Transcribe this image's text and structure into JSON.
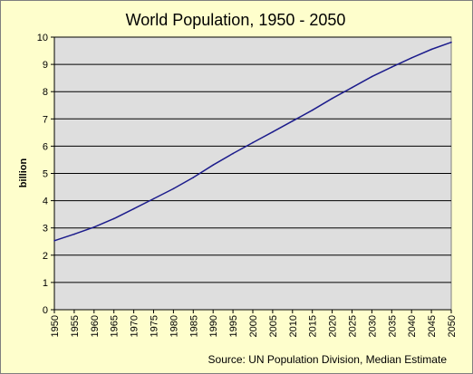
{
  "chart_data": {
    "type": "line",
    "title": "World Population, 1950 - 2050",
    "xlabel": "",
    "ylabel": "billion",
    "source": "Source: UN Population Division, Median Estimate",
    "x": [
      1950,
      1955,
      1960,
      1965,
      1970,
      1975,
      1980,
      1985,
      1990,
      1995,
      2000,
      2005,
      2010,
      2015,
      2020,
      2025,
      2030,
      2035,
      2040,
      2045,
      2050
    ],
    "xtick_labels": [
      "1950",
      "1955",
      "1960",
      "1965",
      "1970",
      "1975",
      "1980",
      "1985",
      "1990",
      "1995",
      "2000",
      "2005",
      "2010",
      "2015",
      "2020",
      "2025",
      "2030",
      "2035",
      "2040",
      "2045",
      "2050"
    ],
    "ytick_labels": [
      "0",
      "1",
      "2",
      "3",
      "4",
      "5",
      "6",
      "7",
      "8",
      "9",
      "10"
    ],
    "xlim": [
      1950,
      2050
    ],
    "ylim": [
      0,
      10
    ],
    "grid": "horizontal",
    "series": [
      {
        "values": [
          2.53,
          2.77,
          3.03,
          3.34,
          3.7,
          4.07,
          4.44,
          4.85,
          5.31,
          5.73,
          6.13,
          6.52,
          6.92,
          7.32,
          7.75,
          8.15,
          8.55,
          8.9,
          9.24,
          9.55,
          9.81
        ]
      }
    ],
    "colors": {
      "background": "#fefecc",
      "plot_area": "#dedede",
      "line": "#1c1c8c",
      "grid": "#000000"
    }
  }
}
